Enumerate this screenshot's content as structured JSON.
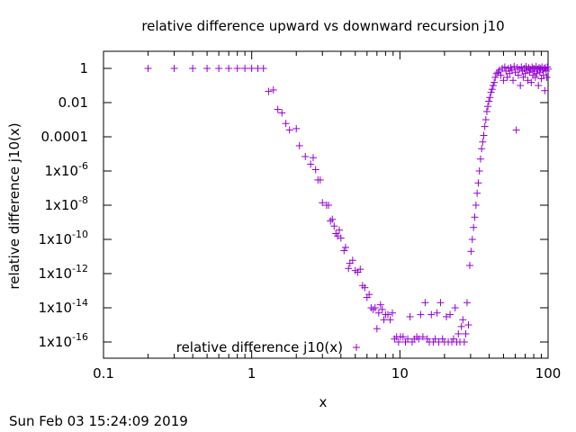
{
  "chart_data": {
    "type": "scatter",
    "title": "relative difference upward vs downward recursion j10",
    "xlabel": "x",
    "ylabel": "relative difference j10(x)",
    "xscale": "log",
    "yscale": "log",
    "xlim": [
      0.1,
      100
    ],
    "ylim": [
      1e-17,
      3
    ],
    "x_ticks": [
      {
        "value": 0.1,
        "label": "0.1"
      },
      {
        "value": 1,
        "label": "1"
      },
      {
        "value": 10,
        "label": "10"
      },
      {
        "value": 100,
        "label": "100"
      }
    ],
    "y_ticks": [
      {
        "value": 1,
        "label": "1"
      },
      {
        "value": 0.01,
        "label": "0.01"
      },
      {
        "value": 0.0001,
        "label": "0.0001"
      },
      {
        "value": 1e-06,
        "label": "1x10-6",
        "base": "1x10",
        "exp": "-6"
      },
      {
        "value": 1e-08,
        "label": "1x10-8",
        "base": "1x10",
        "exp": "-8"
      },
      {
        "value": 1e-10,
        "label": "1x10-10",
        "base": "1x10",
        "exp": "-10"
      },
      {
        "value": 1e-12,
        "label": "1x10-12",
        "base": "1x10",
        "exp": "-12"
      },
      {
        "value": 1e-14,
        "label": "1x10-14",
        "base": "1x10",
        "exp": "-14"
      },
      {
        "value": 1e-16,
        "label": "1x10-16",
        "base": "1x10",
        "exp": "-16"
      }
    ],
    "grid": false,
    "legend_placement": "bottom-center",
    "series": [
      {
        "name": "relative difference j10(x)",
        "color": "#9400d3",
        "marker": "plus",
        "points": [
          [
            0.2,
            1
          ],
          [
            0.3,
            1
          ],
          [
            0.4,
            1
          ],
          [
            0.5,
            1
          ],
          [
            0.6,
            1
          ],
          [
            0.7,
            1
          ],
          [
            0.8,
            1
          ],
          [
            0.9,
            1
          ],
          [
            1.0,
            1
          ],
          [
            1.1,
            1
          ],
          [
            1.2,
            1
          ],
          [
            1.3,
            0.045
          ],
          [
            1.4,
            0.055
          ],
          [
            1.5,
            0.004
          ],
          [
            1.6,
            0.0025
          ],
          [
            1.7,
            0.0006
          ],
          [
            1.8,
            0.00025
          ],
          [
            2.0,
            0.0003
          ],
          [
            2.1,
            3e-05
          ],
          [
            2.3,
            7e-06
          ],
          [
            2.5,
            2.5e-06
          ],
          [
            2.6,
            6e-06
          ],
          [
            2.7,
            1.2e-06
          ],
          [
            2.8,
            3e-07
          ],
          [
            2.9,
            3e-07
          ],
          [
            3.0,
            1.4e-08
          ],
          [
            3.2,
            1e-08
          ],
          [
            3.3,
            1e-08
          ],
          [
            3.4,
            1.2e-09
          ],
          [
            3.5,
            1.5e-09
          ],
          [
            3.6,
            6e-10
          ],
          [
            3.7,
            2.2e-10
          ],
          [
            3.8,
            1.6e-10
          ],
          [
            3.9,
            3.5e-10
          ],
          [
            4.0,
            1.2e-10
          ],
          [
            4.2,
            2.2e-11
          ],
          [
            4.3,
            3.4e-11
          ],
          [
            4.5,
            2e-12
          ],
          [
            4.6,
            4e-12
          ],
          [
            4.8,
            6e-12
          ],
          [
            5.0,
            1.5e-12
          ],
          [
            5.2,
            1.2e-12
          ],
          [
            5.4,
            1.8e-12
          ],
          [
            5.6,
            2e-13
          ],
          [
            5.8,
            1.5e-13
          ],
          [
            6.0,
            4e-14
          ],
          [
            6.2,
            6e-14
          ],
          [
            6.4,
            1e-14
          ],
          [
            6.6,
            8e-15
          ],
          [
            6.8,
            1e-14
          ],
          [
            7.0,
            6e-16
          ],
          [
            7.2,
            5e-15
          ],
          [
            7.4,
            1.5e-14
          ],
          [
            7.6,
            8e-15
          ],
          [
            7.8,
            2e-15
          ],
          [
            8.0,
            4e-15
          ],
          [
            8.3,
            4e-15
          ],
          [
            8.6,
            2e-15
          ],
          [
            8.9,
            5e-15
          ],
          [
            9.2,
            1.5e-16
          ],
          [
            9.5,
            2e-16
          ],
          [
            9.8,
            1e-16
          ],
          [
            10.1,
            2e-16
          ],
          [
            10.5,
            2e-16
          ],
          [
            10.9,
            1e-16
          ],
          [
            11.3,
            1.5e-16
          ],
          [
            11.7,
            3e-15
          ],
          [
            12.1,
            1e-16
          ],
          [
            12.5,
            1.5e-16
          ],
          [
            13.0,
            2e-16
          ],
          [
            13.4,
            1.5e-16
          ],
          [
            13.8,
            4e-15
          ],
          [
            14.3,
            2e-16
          ],
          [
            14.8,
            2e-14
          ],
          [
            15.3,
            1.5e-16
          ],
          [
            15.8,
            1e-16
          ],
          [
            16.3,
            4e-15
          ],
          [
            16.8,
            1e-16
          ],
          [
            17.3,
            1.5e-16
          ],
          [
            17.8,
            5e-15
          ],
          [
            18.3,
            1e-16
          ],
          [
            18.8,
            2e-14
          ],
          [
            19.4,
            1.5e-16
          ],
          [
            20.0,
            1e-16
          ],
          [
            20.6,
            3e-15
          ],
          [
            21.2,
            1e-16
          ],
          [
            21.8,
            4e-15
          ],
          [
            22.4,
            1e-16
          ],
          [
            23.0,
            1.5e-16
          ],
          [
            23.6,
            1e-14
          ],
          [
            24.2,
            1e-16
          ],
          [
            24.8,
            3e-16
          ],
          [
            25.4,
            1e-16
          ],
          [
            26.0,
            8e-16
          ],
          [
            26.6,
            2e-15
          ],
          [
            27.2,
            1e-16
          ],
          [
            27.8,
            3e-16
          ],
          [
            28.4,
            2e-14
          ],
          [
            29.0,
            1e-15
          ],
          [
            29.6,
            3e-12
          ],
          [
            30.2,
            2e-11
          ],
          [
            30.8,
            1e-10
          ],
          [
            31.4,
            5e-10
          ],
          [
            32.0,
            2e-09
          ],
          [
            32.6,
            1e-08
          ],
          [
            33.2,
            5e-08
          ],
          [
            33.8,
            2e-07
          ],
          [
            34.4,
            1e-06
          ],
          [
            35.0,
            5e-06
          ],
          [
            35.6,
            2e-05
          ],
          [
            36.2,
            5e-05
          ],
          [
            36.8,
            0.00012
          ],
          [
            37.4,
            0.0004
          ],
          [
            38.0,
            0.001
          ],
          [
            38.6,
            0.003
          ],
          [
            39.2,
            0.006
          ],
          [
            39.8,
            0.012
          ],
          [
            40.5,
            0.02
          ],
          [
            41.2,
            0.04
          ],
          [
            41.9,
            0.06
          ],
          [
            42.6,
            0.1
          ],
          [
            43.3,
            0.15
          ],
          [
            44.0,
            0.3
          ],
          [
            45.0,
            0.5
          ],
          [
            46.0,
            0.6
          ],
          [
            47.0,
            0.8
          ],
          [
            48.0,
            0.4
          ],
          [
            49.0,
            1.0
          ],
          [
            50.0,
            0.2
          ],
          [
            51.0,
            1.2
          ],
          [
            52.0,
            0.7
          ],
          [
            53.0,
            0.3
          ],
          [
            54.0,
            1.0
          ],
          [
            55.0,
            0.5
          ],
          [
            56.0,
            1.1
          ],
          [
            57.0,
            0.8
          ],
          [
            58.0,
            0.2
          ],
          [
            59.0,
            1.3
          ],
          [
            60.0,
            0.6
          ],
          [
            61.0,
            0.00025
          ],
          [
            62.0,
            1.1
          ],
          [
            63.0,
            0.4
          ],
          [
            64.0,
            0.9
          ],
          [
            65.0,
            0.1
          ],
          [
            66.0,
            1.2
          ],
          [
            67.0,
            0.7
          ],
          [
            68.0,
            0.3
          ],
          [
            69.0,
            1.0
          ],
          [
            70.0,
            0.5
          ],
          [
            71.0,
            1.3
          ],
          [
            72.0,
            0.8
          ],
          [
            73.0,
            0.2
          ],
          [
            74.0,
            1.1
          ],
          [
            75.0,
            0.6
          ],
          [
            76.0,
            0.9
          ],
          [
            77.0,
            0.15
          ],
          [
            78.0,
            1.2
          ],
          [
            79.0,
            0.4
          ],
          [
            80.0,
            1.0
          ],
          [
            81.0,
            0.7
          ],
          [
            82.0,
            0.3
          ],
          [
            83.0,
            1.3
          ],
          [
            84.0,
            0.5
          ],
          [
            85.0,
            0.9
          ],
          [
            86.0,
            0.1
          ],
          [
            87.0,
            1.1
          ],
          [
            88.0,
            0.6
          ],
          [
            89.0,
            1.0
          ],
          [
            90.0,
            0.25
          ],
          [
            91.0,
            1.2
          ],
          [
            92.0,
            0.8
          ],
          [
            93.0,
            0.4
          ],
          [
            94.0,
            1.0
          ],
          [
            95.0,
            0.05
          ],
          [
            96.0,
            1.1
          ],
          [
            97.0,
            0.7
          ],
          [
            98.0,
            0.3
          ],
          [
            99.0,
            1.2
          ],
          [
            100.0,
            0.9
          ]
        ]
      }
    ]
  },
  "timestamp": "Sun Feb 03 15:24:09 2019"
}
